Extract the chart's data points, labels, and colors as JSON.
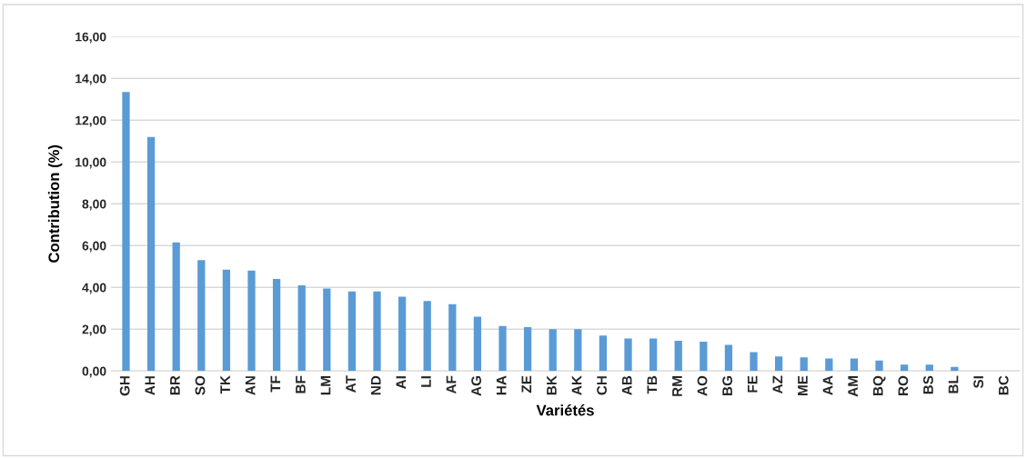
{
  "chart_data": {
    "type": "bar",
    "xlabel": "Variétés",
    "ylabel": "Contribution (%)",
    "categories": [
      "GH",
      "AH",
      "BR",
      "SO",
      "TK",
      "AN",
      "TF",
      "BF",
      "LM",
      "AT",
      "ND",
      "AI",
      "LI",
      "AF",
      "AG",
      "HA",
      "ZE",
      "BK",
      "AK",
      "CH",
      "AB",
      "TB",
      "RM",
      "AO",
      "BG",
      "FE",
      "AZ",
      "ME",
      "AA",
      "AM",
      "BQ",
      "RO",
      "BS",
      "BL",
      "SI",
      "BC"
    ],
    "values": [
      13.35,
      11.2,
      6.15,
      5.3,
      4.85,
      4.8,
      4.4,
      4.1,
      3.95,
      3.8,
      3.8,
      3.55,
      3.35,
      3.2,
      2.6,
      2.15,
      2.1,
      2.0,
      2.0,
      1.7,
      1.55,
      1.55,
      1.45,
      1.4,
      1.25,
      0.9,
      0.7,
      0.65,
      0.6,
      0.6,
      0.5,
      0.3,
      0.3,
      0.2,
      0,
      0
    ],
    "color": "#5b9bd5",
    "ylim": [
      0,
      16
    ],
    "yticks": [
      {
        "value": 0,
        "label": "0,00"
      },
      {
        "value": 2,
        "label": "2,00"
      },
      {
        "value": 4,
        "label": "4,00"
      },
      {
        "value": 6,
        "label": "6,00"
      },
      {
        "value": 8,
        "label": "8,00"
      },
      {
        "value": 10,
        "label": "10,00"
      },
      {
        "value": 12,
        "label": "12,00"
      },
      {
        "value": 14,
        "label": "14,00"
      },
      {
        "value": 16,
        "label": "16,00"
      }
    ],
    "grid": "y",
    "legend": false
  }
}
